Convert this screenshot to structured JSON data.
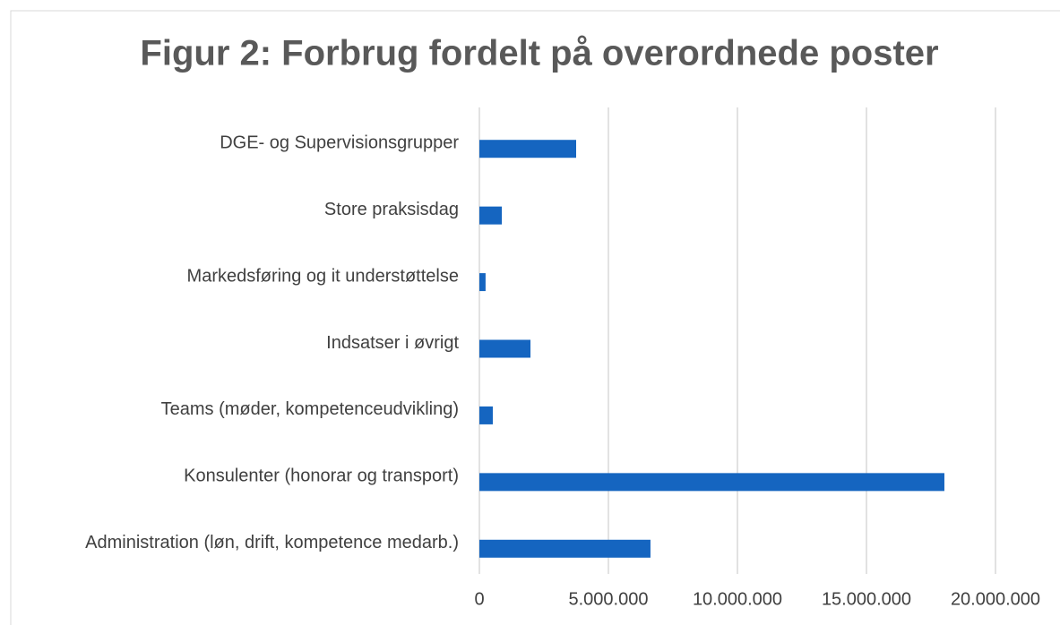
{
  "chart_data": {
    "type": "bar",
    "orientation": "horizontal",
    "title": "Figur 2: Forbrug fordelt på overordnede poster",
    "categories": [
      "DGE- og Supervisionsgrupper",
      "Store praksisdag",
      "Markedsføring og it understøttelse",
      "Indsatser i øvrigt",
      "Teams (møder, kompetenceudvikling)",
      "Konsulenter (honorar og transport)",
      "Administration (løn, drift, kompetence medarb.)"
    ],
    "values": [
      3750000,
      870000,
      240000,
      1980000,
      520000,
      18020000,
      6630000
    ],
    "color": "#1565c0",
    "xlim": [
      0,
      20000000
    ],
    "xticks": [
      0,
      {
        "value": 5000000,
        "label": "5.000.000"
      },
      {
        "value": 10000000,
        "label": "10.000.000"
      },
      {
        "value": 15000000,
        "label": "15.000.000"
      },
      {
        "value": 20000000,
        "label": "20.000.000"
      }
    ],
    "grid": true
  }
}
